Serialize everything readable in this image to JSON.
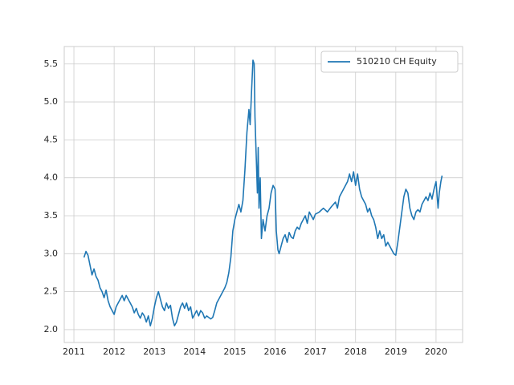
{
  "chart_data": {
    "type": "line",
    "xlim": [
      2010.76,
      2020.66
    ],
    "xticks": [
      2011,
      2012,
      2013,
      2014,
      2015,
      2016,
      2017,
      2018,
      2019,
      2020
    ],
    "ylim": [
      1.83,
      5.73
    ],
    "yticks": [
      {
        "value": 2,
        "label": "2.0"
      },
      2.5,
      {
        "value": 3,
        "label": "3.0"
      },
      3.5,
      {
        "value": 4,
        "label": "4.0"
      },
      4.5,
      {
        "value": 5,
        "label": "5.0"
      },
      5.5
    ],
    "grid": true,
    "legend_position": "upper right",
    "x": [
      2011.25,
      2011.3,
      2011.35,
      2011.4,
      2011.45,
      2011.5,
      2011.55,
      2011.6,
      2011.65,
      2011.7,
      2011.75,
      2011.8,
      2011.85,
      2011.9,
      2011.95,
      2012.0,
      2012.05,
      2012.1,
      2012.15,
      2012.2,
      2012.25,
      2012.3,
      2012.35,
      2012.4,
      2012.45,
      2012.5,
      2012.55,
      2012.6,
      2012.65,
      2012.7,
      2012.75,
      2012.8,
      2012.85,
      2012.9,
      2012.95,
      2013.0,
      2013.05,
      2013.1,
      2013.15,
      2013.2,
      2013.25,
      2013.3,
      2013.35,
      2013.4,
      2013.45,
      2013.5,
      2013.55,
      2013.6,
      2013.65,
      2013.7,
      2013.75,
      2013.8,
      2013.85,
      2013.9,
      2013.95,
      2014.0,
      2014.05,
      2014.1,
      2014.15,
      2014.2,
      2014.25,
      2014.3,
      2014.35,
      2014.4,
      2014.45,
      2014.5,
      2014.55,
      2014.6,
      2014.65,
      2014.7,
      2014.75,
      2014.8,
      2014.85,
      2014.9,
      2014.95,
      2015.0,
      2015.05,
      2015.1,
      2015.15,
      2015.2,
      2015.25,
      2015.3,
      2015.35,
      2015.38,
      2015.42,
      2015.45,
      2015.48,
      2015.5,
      2015.53,
      2015.56,
      2015.58,
      2015.6,
      2015.63,
      2015.66,
      2015.7,
      2015.75,
      2015.8,
      2015.85,
      2015.9,
      2015.95,
      2016.0,
      2016.03,
      2016.07,
      2016.1,
      2016.15,
      2016.2,
      2016.25,
      2016.3,
      2016.35,
      2016.4,
      2016.45,
      2016.5,
      2016.55,
      2016.6,
      2016.65,
      2016.7,
      2016.75,
      2016.8,
      2016.85,
      2016.9,
      2016.95,
      2017.0,
      2017.1,
      2017.2,
      2017.3,
      2017.4,
      2017.5,
      2017.55,
      2017.6,
      2017.7,
      2017.8,
      2017.85,
      2017.9,
      2017.95,
      2018.0,
      2018.05,
      2018.1,
      2018.15,
      2018.2,
      2018.25,
      2018.3,
      2018.35,
      2018.4,
      2018.45,
      2018.5,
      2018.55,
      2018.6,
      2018.65,
      2018.7,
      2018.75,
      2018.8,
      2018.85,
      2018.9,
      2018.95,
      2019.0,
      2019.05,
      2019.1,
      2019.15,
      2019.2,
      2019.25,
      2019.3,
      2019.35,
      2019.4,
      2019.45,
      2019.5,
      2019.55,
      2019.6,
      2019.65,
      2019.7,
      2019.75,
      2019.8,
      2019.85,
      2019.9,
      2019.95,
      2020.0,
      2020.05,
      2020.08,
      2020.12,
      2020.15
    ],
    "series": [
      {
        "name": "510210 CH Equity",
        "color": "#1f77b4",
        "values": [
          2.95,
          3.03,
          2.98,
          2.85,
          2.72,
          2.8,
          2.7,
          2.65,
          2.55,
          2.5,
          2.42,
          2.52,
          2.38,
          2.3,
          2.25,
          2.2,
          2.3,
          2.35,
          2.4,
          2.45,
          2.38,
          2.45,
          2.4,
          2.35,
          2.3,
          2.22,
          2.28,
          2.2,
          2.15,
          2.22,
          2.18,
          2.1,
          2.18,
          2.05,
          2.15,
          2.3,
          2.42,
          2.5,
          2.4,
          2.3,
          2.25,
          2.35,
          2.28,
          2.32,
          2.15,
          2.05,
          2.1,
          2.2,
          2.3,
          2.35,
          2.28,
          2.35,
          2.25,
          2.3,
          2.15,
          2.2,
          2.25,
          2.18,
          2.25,
          2.22,
          2.15,
          2.18,
          2.16,
          2.14,
          2.16,
          2.25,
          2.35,
          2.4,
          2.45,
          2.5,
          2.55,
          2.62,
          2.75,
          2.95,
          3.3,
          3.45,
          3.55,
          3.65,
          3.55,
          3.7,
          4.1,
          4.6,
          4.9,
          4.7,
          5.2,
          5.55,
          5.5,
          4.8,
          4.3,
          3.8,
          4.4,
          3.6,
          4.0,
          3.2,
          3.45,
          3.3,
          3.5,
          3.6,
          3.8,
          3.9,
          3.85,
          3.3,
          3.05,
          3.0,
          3.1,
          3.2,
          3.25,
          3.15,
          3.28,
          3.22,
          3.2,
          3.3,
          3.35,
          3.32,
          3.4,
          3.45,
          3.5,
          3.4,
          3.55,
          3.5,
          3.45,
          3.52,
          3.55,
          3.6,
          3.55,
          3.62,
          3.68,
          3.6,
          3.75,
          3.85,
          3.95,
          4.05,
          3.95,
          4.08,
          3.9,
          4.05,
          3.85,
          3.75,
          3.7,
          3.65,
          3.55,
          3.6,
          3.5,
          3.45,
          3.35,
          3.2,
          3.3,
          3.2,
          3.25,
          3.1,
          3.15,
          3.1,
          3.05,
          3.0,
          2.98,
          3.15,
          3.35,
          3.55,
          3.75,
          3.85,
          3.8,
          3.6,
          3.5,
          3.45,
          3.55,
          3.58,
          3.55,
          3.65,
          3.7,
          3.75,
          3.7,
          3.8,
          3.72,
          3.85,
          3.95,
          3.6,
          3.8,
          3.95,
          4.03
        ]
      }
    ]
  }
}
